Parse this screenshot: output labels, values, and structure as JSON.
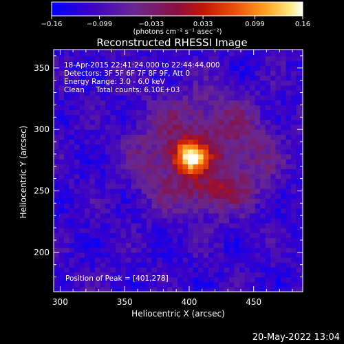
{
  "chart_data": {
    "type": "heatmap",
    "title": "Reconstructed RHESSI Image",
    "xlabel": "Heliocentric X (arcsec)",
    "ylabel": "Heliocentric Y (arcsec)",
    "xlim": [
      295,
      488
    ],
    "ylim": [
      168,
      365
    ],
    "x_ticks": [
      300,
      350,
      400,
      450
    ],
    "y_ticks": [
      200,
      250,
      300,
      350
    ],
    "colorbar": {
      "min": -0.16,
      "max": 0.16,
      "ticks": [
        -0.16,
        -0.099,
        -0.033,
        0.033,
        0.099,
        0.16
      ],
      "tick_labels": [
        "−0.16",
        "−0.099",
        "−0.033",
        "0.033",
        "0.099",
        "0.16"
      ],
      "label": "(photons cm⁻² s⁻¹ asec⁻²)",
      "stops": [
        "#0000ff",
        "#5a00a8",
        "#7a2e8c",
        "#b01510",
        "#e8380a",
        "#ff9a1a",
        "#ffe070",
        "#ffffff"
      ]
    },
    "annotations": [
      "18-Apr-2015 22:41:24.000 to 22:44:44.000",
      "Detectors: 3F 5F 6F 7F 8F 9F, Att 0",
      "Energy Range: 3.0 - 6.0 keV",
      "Clean     Total counts: 6.10E+03"
    ],
    "peak_text": "Position of Peak = [401,278]",
    "peak": {
      "x": 401,
      "y": 278,
      "value": 0.16
    },
    "grid": false
  },
  "footer_timestamp": "20-May-2022 13:04"
}
